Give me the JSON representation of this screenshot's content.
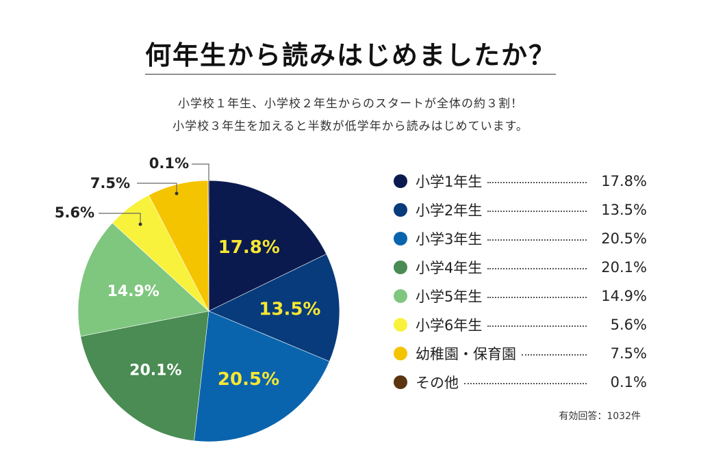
{
  "title": "何年生から読みはじめましたか？",
  "subtitle_lines": [
    "小学校１年生、小学校２年生からのスタートが全体の約３割！",
    "小学校３年生を加えると半数が低学年から読みはじめています。"
  ],
  "footnote": "有効回答：1032件",
  "chart_data": {
    "type": "pie",
    "slices": [
      {
        "name": "小学1年生",
        "value": 17.8,
        "label": "17.8%",
        "color": "#0b1a4e",
        "label_color": "#f7e733"
      },
      {
        "name": "小学2年生",
        "value": 13.5,
        "label": "13.5%",
        "color": "#073b7b",
        "label_color": "#f7e733"
      },
      {
        "name": "小学3年生",
        "value": 20.5,
        "label": "20.5%",
        "color": "#0a64ad",
        "label_color": "#f7e733"
      },
      {
        "name": "小学4年生",
        "value": 20.1,
        "label": "20.1%",
        "color": "#4a8c53",
        "label_color": "#ffffff"
      },
      {
        "name": "小学5年生",
        "value": 14.9,
        "label": "14.9%",
        "color": "#7fc67f",
        "label_color": "#ffffff"
      },
      {
        "name": "小学6年生",
        "value": 5.6,
        "label": "5.6%",
        "color": "#f8f23c",
        "label_color": "#222222"
      },
      {
        "name": "幼稚園・保育園",
        "value": 7.5,
        "label": "7.5%",
        "color": "#f5c400",
        "label_color": "#222222"
      },
      {
        "name": "その他",
        "value": 0.1,
        "label": "0.1%",
        "color": "#5b3410",
        "label_color": "#222222"
      }
    ],
    "start_angle": "12 o'clock",
    "direction": "clockwise",
    "legend_position": "right"
  }
}
